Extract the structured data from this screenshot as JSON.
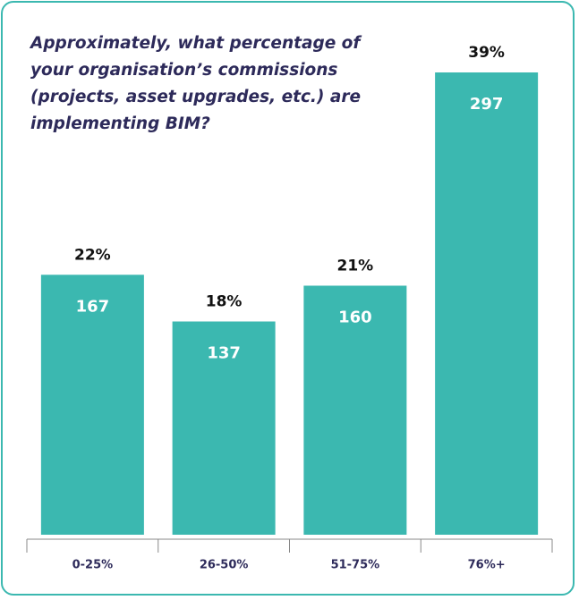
{
  "chart_data": {
    "type": "bar",
    "title": "Approximately, what percentage of your organisation’s commissions (projects, asset upgrades, etc.) are implementing BIM?",
    "categories": [
      "0-25%",
      "26-50%",
      "51-75%",
      "76%+"
    ],
    "values": [
      167,
      137,
      160,
      297
    ],
    "shares": [
      22,
      18,
      21,
      39
    ],
    "share_labels": [
      "22%",
      "18%",
      "21%",
      "39%"
    ],
    "color": "#3bb8b0"
  }
}
